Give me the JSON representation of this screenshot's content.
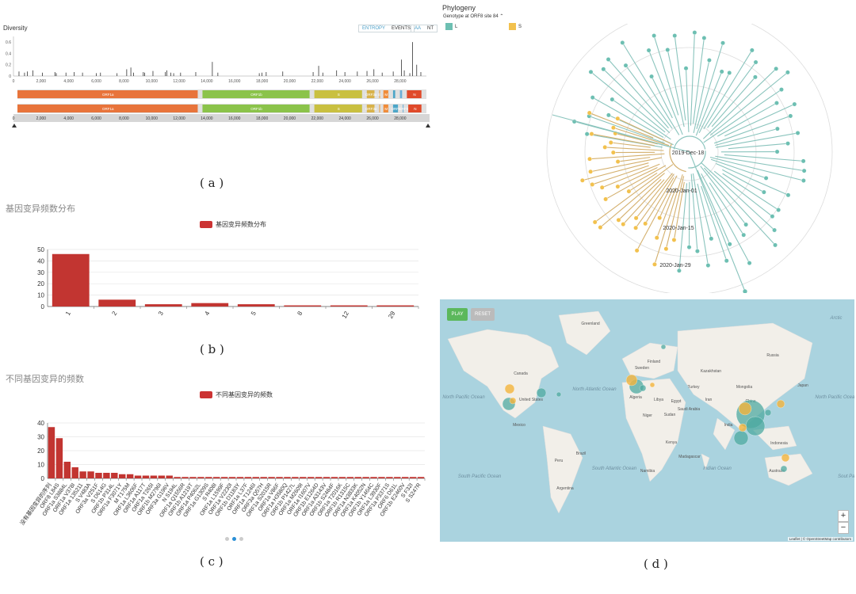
{
  "panel_a": {
    "title": "Diversity",
    "toggle1": [
      "ENTROPY",
      "EVENTS"
    ],
    "toggle2": [
      "AA",
      "NT"
    ],
    "y_ticks": [
      "0.6",
      "0.4",
      "0.2",
      "0"
    ],
    "x_ticks": [
      "0",
      "2,000",
      "4,000",
      "6,000",
      "8,000",
      "10,000",
      "12,000",
      "14,000",
      "16,000",
      "18,000",
      "20,000",
      "22,000",
      "24,000",
      "26,000",
      "28,000"
    ],
    "genes": [
      {
        "name": "ORF1a",
        "start": 0,
        "end": 13400,
        "color": "#e8743b"
      },
      {
        "name": "ORF1b",
        "start": 13400,
        "end": 21500,
        "color": "#8bc34a"
      },
      {
        "name": "S",
        "start": 21500,
        "end": 25300,
        "color": "#c9c040"
      },
      {
        "name": "ORF3a",
        "start": 25300,
        "end": 26200,
        "color": "#d8b24a"
      },
      {
        "name": "E",
        "start": 26200,
        "end": 26500,
        "color": "#e8a33b"
      },
      {
        "name": "M",
        "start": 26500,
        "end": 27200,
        "color": "#f08c3a"
      },
      {
        "name": "",
        "start": 27200,
        "end": 27700,
        "color": "#4da6c8"
      },
      {
        "name": "",
        "start": 27700,
        "end": 28200,
        "color": "#6aaed6"
      },
      {
        "name": "N",
        "start": 28200,
        "end": 29600,
        "color": "#e04a2a"
      }
    ],
    "genes2": [
      {
        "name": "ORF1a",
        "start": 0,
        "end": 13400,
        "color": "#e8743b"
      },
      {
        "name": "ORF1b",
        "start": 13400,
        "end": 21500,
        "color": "#8bc34a"
      },
      {
        "name": "S",
        "start": 21500,
        "end": 25300,
        "color": "#c9c040"
      },
      {
        "name": "ORF3a",
        "start": 25300,
        "end": 26200,
        "color": "#d8b24a"
      },
      {
        "name": "",
        "start": 26200,
        "end": 26500,
        "color": "#e8a33b"
      },
      {
        "name": "M",
        "start": 26500,
        "end": 27200,
        "color": "#f08c3a"
      },
      {
        "name": "ORF6",
        "start": 27200,
        "end": 27900,
        "color": "#4da6c8"
      },
      {
        "name": "ORF8",
        "start": 27900,
        "end": 28300,
        "color": "#6aaed6"
      },
      {
        "name": "N",
        "start": 28300,
        "end": 29600,
        "color": "#e04a2a"
      }
    ],
    "caption": "( a )"
  },
  "chart_data": [
    {
      "type": "bar",
      "title": "Diversity",
      "xlim": [
        0,
        29903
      ],
      "ylim": [
        0,
        0.7
      ],
      "x": [
        400,
        800,
        1000,
        1400,
        2100,
        3000,
        3100,
        3800,
        4400,
        5000,
        6000,
        6300,
        7500,
        8200,
        8500,
        8700,
        9400,
        9500,
        10100,
        11000,
        11100,
        11400,
        11600,
        12100,
        13200,
        14400,
        14800,
        17800,
        18000,
        18300,
        19500,
        21700,
        22100,
        22400,
        23400,
        24000,
        24900,
        25600,
        26100,
        26700,
        27500,
        28100,
        28300,
        28700,
        28900,
        29200,
        29500
      ],
      "values": [
        0.08,
        0.06,
        0.08,
        0.1,
        0.06,
        0.07,
        0.05,
        0.06,
        0.07,
        0.06,
        0.05,
        0.06,
        0.05,
        0.12,
        0.15,
        0.06,
        0.07,
        0.06,
        0.09,
        0.07,
        0.1,
        0.06,
        0.05,
        0.06,
        0.07,
        0.25,
        0.06,
        0.05,
        0.06,
        0.07,
        0.08,
        0.07,
        0.18,
        0.06,
        0.1,
        0.07,
        0.08,
        0.09,
        0.12,
        0.06,
        0.08,
        0.29,
        0.1,
        0.05,
        0.6,
        0.2,
        0.07
      ]
    },
    {
      "type": "bar",
      "title": "基因变异频数分布",
      "legend": "基因变异频数分布",
      "categories": [
        "1",
        "2",
        "3",
        "4",
        "5",
        "8",
        "12",
        "29"
      ],
      "values": [
        46,
        6,
        2,
        3,
        2,
        1,
        1,
        1
      ],
      "ylim": [
        0,
        50
      ],
      "yticks": [
        0,
        10,
        20,
        30,
        40,
        50
      ]
    },
    {
      "type": "bar",
      "title": "不同基因变异的频数",
      "legend": "不同基因变异的频数",
      "categories": [
        "没有基因变异的序列",
        "ORF8 L84S",
        "ORF1a S3884L",
        "ORF1a V378I",
        "ORF1a 135211",
        "S V483A",
        "ORF3a V251F",
        "S D614G",
        "ORF1b P314L",
        "ORF1a F3071Y",
        "M T175M",
        "ORF1a L3606F",
        "ORF1a A117T",
        "ORF1a T265I",
        "ORF1b M2796I",
        "ORF3a G196V",
        "N S194L",
        "ORF1a Q1556R",
        "ORF1b A1219T",
        "ORF1a P4062L",
        "ORF1a G1309S",
        "S R408I",
        "ORF1a L1599F",
        "ORF1a V2230I",
        "ORF1b D1183Y",
        "ORF1a L37F",
        "ORF1a T1246I",
        "ORF3a Q57H",
        "ORF1a S2015R",
        "ORF1a V86F",
        "ORF1a H3580Q",
        "ORF1b P1427L",
        "ORF1a M2609I",
        "ORF1a I1607V",
        "ORF1b E1264D",
        "ORF1a A3143V",
        "ORF1b S2484F",
        "ORF1a T2016K",
        "ORF1b R1315C",
        "ORF1a N3833K",
        "ORF1a K4052N",
        "ORF1b Y1464C",
        "ORF1a L3930F",
        "ORF1a P3371S",
        "ORF6 D61L",
        "ORF1b E2460V",
        "S F32I",
        "S S247R"
      ],
      "values": [
        37,
        29,
        12,
        8,
        5,
        5,
        4,
        4,
        4,
        3,
        3,
        2,
        2,
        2,
        2,
        2,
        1,
        1,
        1,
        1,
        1,
        1,
        1,
        1,
        1,
        1,
        1,
        1,
        1,
        1,
        1,
        1,
        1,
        1,
        1,
        1,
        1,
        1,
        1,
        1,
        1,
        1,
        1,
        1,
        1,
        1,
        1,
        1
      ],
      "ylim": [
        0,
        40
      ],
      "yticks": [
        0,
        10,
        20,
        30,
        40
      ]
    }
  ],
  "panel_b": {
    "title": "基因变异频数分布",
    "legend": "基因变异频数分布",
    "caption": "( b )"
  },
  "panel_c": {
    "title": "不同基因变异的频数",
    "legend": "不同基因变异的频数",
    "caption": "( c )"
  },
  "panel_d": {
    "phylogeny_title": "Phylogeny",
    "color_by": "Genotype at ORF8 site 84",
    "legend": [
      {
        "label": "L",
        "color": "#6dbfb2"
      },
      {
        "label": "S",
        "color": "#f2c14e"
      }
    ],
    "dates": [
      "2019-Dec-18",
      "2020-Jan-01",
      "2020-Jan-15",
      "2020-Jan-29"
    ],
    "map": {
      "play": "PLAY",
      "reset": "RESET",
      "zoom_in": "+",
      "zoom_out": "−",
      "attribution": "Leaflet | © OpenStreetMap contributors",
      "labels": [
        {
          "text": "Greenland"
        },
        {
          "text": "Canada"
        },
        {
          "text": "United States"
        },
        {
          "text": "Mexico"
        },
        {
          "text": "Brazil"
        },
        {
          "text": "Peru"
        },
        {
          "text": "Argentina"
        },
        {
          "text": "Algeria"
        },
        {
          "text": "Libya"
        },
        {
          "text": "Egypt"
        },
        {
          "text": "Niger"
        },
        {
          "text": "Sudan"
        },
        {
          "text": "Kenya"
        },
        {
          "text": "Namibia"
        },
        {
          "text": "Madagascar"
        },
        {
          "text": "Saudi Arabia"
        },
        {
          "text": "Iran"
        },
        {
          "text": "Kazakhstan"
        },
        {
          "text": "Mongolia"
        },
        {
          "text": "China"
        },
        {
          "text": "India"
        },
        {
          "text": "Indonesia"
        },
        {
          "text": "Australia"
        },
        {
          "text": "Russia"
        },
        {
          "text": "Finland"
        },
        {
          "text": "Sweden"
        },
        {
          "text": "Turkey"
        },
        {
          "text": "Japan"
        }
      ],
      "oceans": [
        {
          "text": "North Pacific Ocean"
        },
        {
          "text": "North Atlantic Ocean"
        },
        {
          "text": "South Pacific Ocean"
        },
        {
          "text": "South Atlantic Ocean"
        },
        {
          "text": "Indian Ocean"
        },
        {
          "text": "North Pacific Ocean"
        },
        {
          "text": "Arctic"
        },
        {
          "text": "Sout Paci"
        }
      ]
    },
    "caption": "( d )"
  }
}
